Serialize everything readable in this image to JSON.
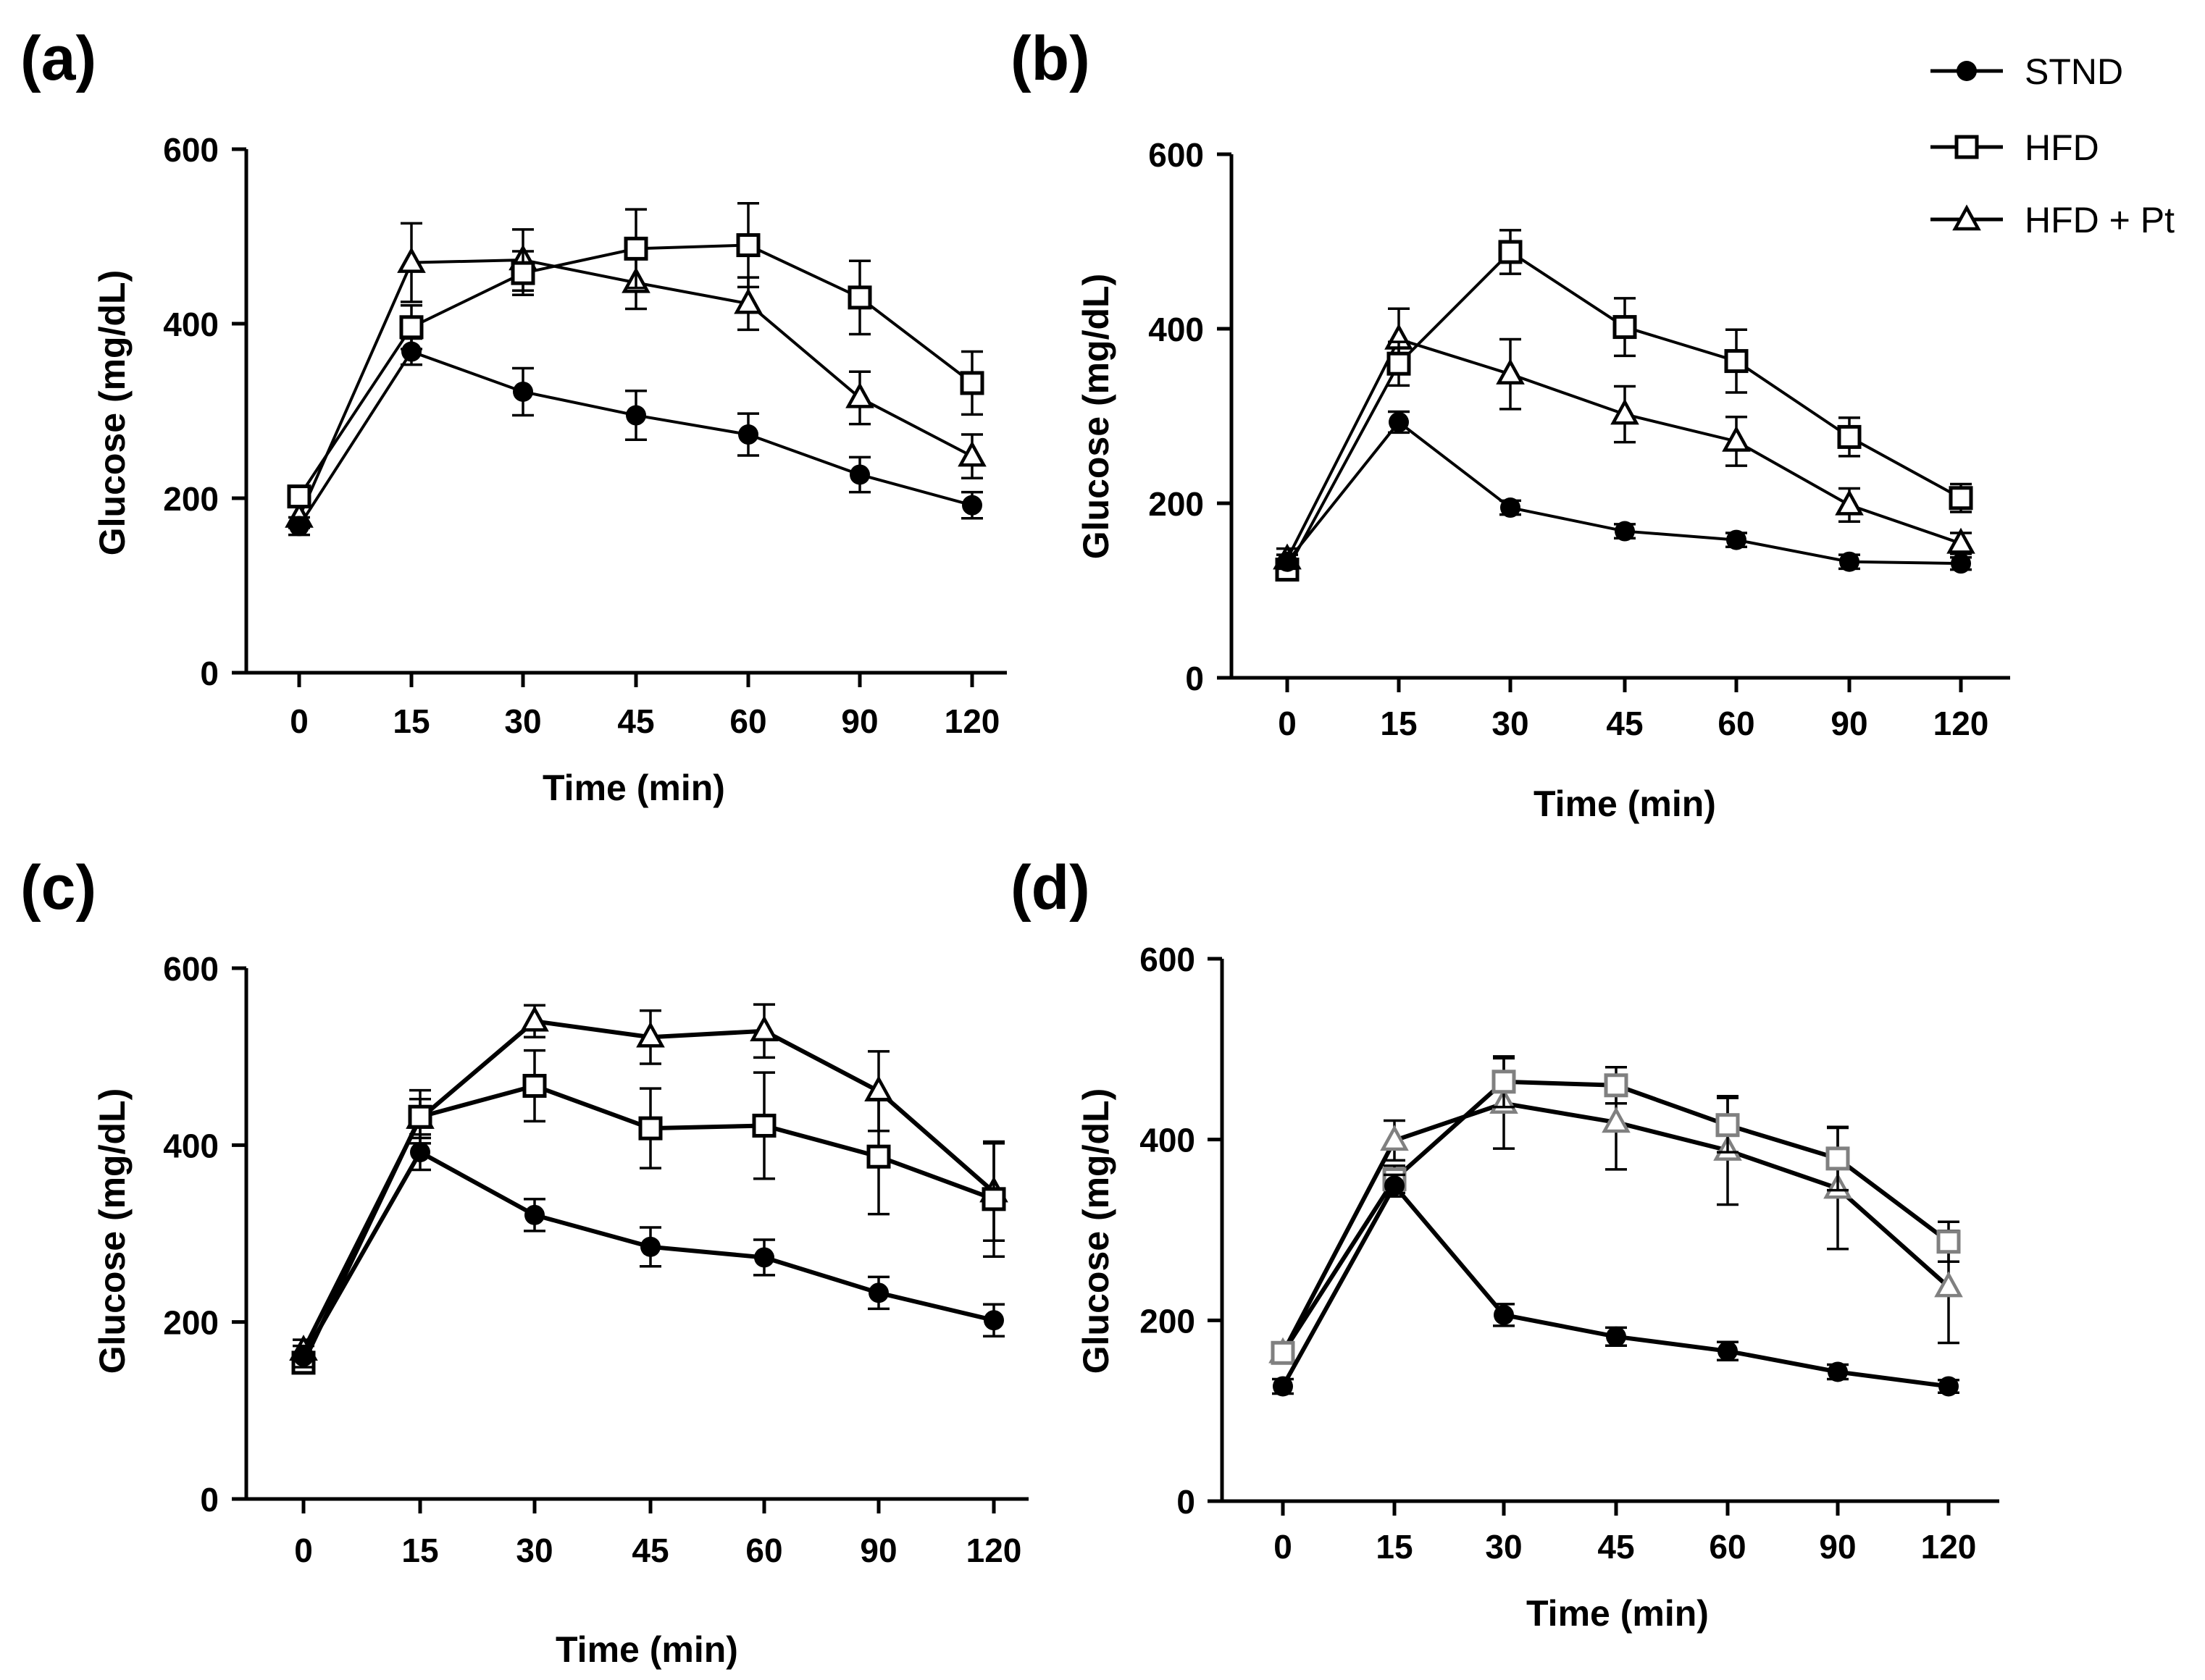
{
  "legend": {
    "placement": "top-right",
    "entries": [
      {
        "label": "STND",
        "marker": "filled-circle"
      },
      {
        "label": "HFD",
        "marker": "open-square"
      },
      {
        "label": "HFD + Pt",
        "marker": "open-triangle"
      }
    ]
  },
  "colors": {
    "axis": "#000000",
    "stnd": "#000000",
    "hfd": "#000000",
    "hfdpt": "#000000",
    "panel_d_hfd": "#808080",
    "panel_d_hfdpt": "#808080",
    "background": "#ffffff"
  },
  "chart_data": [
    {
      "type": "line",
      "panel_label": "(a)",
      "title": "",
      "xlabel": "Time (min)",
      "ylabel": "Glucose (mg/dL)",
      "categories": [
        "0",
        "15",
        "30",
        "45",
        "60",
        "90",
        "120"
      ],
      "ylim": [
        0,
        600
      ],
      "yticks": [
        "0",
        "200",
        "400",
        "600"
      ],
      "grid": false,
      "series": [
        {
          "name": "STND",
          "values": [
            168,
            368,
            322,
            295,
            273,
            227,
            192
          ],
          "errors": [
            10,
            15,
            27,
            28,
            24,
            20,
            15
          ]
        },
        {
          "name": "HFD",
          "values": [
            202,
            396,
            458,
            486,
            490,
            430,
            332
          ],
          "errors": [
            12,
            25,
            25,
            45,
            48,
            42,
            36
          ]
        },
        {
          "name": "HFD + Pt",
          "values": [
            178,
            470,
            473,
            447,
            423,
            315,
            248
          ],
          "errors": [
            12,
            45,
            35,
            30,
            30,
            30,
            25
          ]
        }
      ]
    },
    {
      "type": "line",
      "panel_label": "(b)",
      "title": "",
      "xlabel": "Time (min)",
      "ylabel": "Glucose (mg/dL)",
      "categories": [
        "0",
        "15",
        "30",
        "45",
        "60",
        "90",
        "120"
      ],
      "ylim": [
        0,
        600
      ],
      "yticks": [
        "0",
        "200",
        "400",
        "600"
      ],
      "grid": false,
      "series": [
        {
          "name": "STND",
          "values": [
            133,
            293,
            195,
            168,
            158,
            133,
            131
          ],
          "errors": [
            8,
            12,
            8,
            8,
            8,
            8,
            7
          ]
        },
        {
          "name": "HFD",
          "values": [
            124,
            360,
            488,
            402,
            363,
            276,
            206
          ],
          "errors": [
            10,
            25,
            25,
            33,
            36,
            22,
            16
          ]
        },
        {
          "name": "HFD + Pt",
          "values": [
            136,
            388,
            348,
            302,
            271,
            198,
            154
          ],
          "errors": [
            12,
            35,
            40,
            32,
            28,
            19,
            12
          ]
        }
      ]
    },
    {
      "type": "line",
      "panel_label": "(c)",
      "title": "",
      "xlabel": "Time (min)",
      "ylabel": "Glucose (mg/dL)",
      "categories": [
        "0",
        "15",
        "30",
        "45",
        "60",
        "90",
        "120"
      ],
      "ylim": [
        0,
        600
      ],
      "yticks": [
        "0",
        "200",
        "400",
        "600"
      ],
      "grid": false,
      "series": [
        {
          "name": "STND",
          "values": [
            161,
            392,
            321,
            285,
            273,
            233,
            202
          ],
          "errors": [
            12,
            20,
            18,
            22,
            20,
            18,
            18
          ]
        },
        {
          "name": "HFD",
          "values": [
            154,
            432,
            467,
            419,
            422,
            387,
            339
          ],
          "errors": [
            10,
            30,
            40,
            45,
            60,
            65,
            65
          ]
        },
        {
          "name": "HFD + Pt",
          "values": [
            168,
            430,
            540,
            522,
            529,
            461,
            347
          ],
          "errors": [
            12,
            22,
            18,
            30,
            30,
            45,
            55
          ]
        }
      ]
    },
    {
      "type": "line",
      "panel_label": "(d)",
      "title": "",
      "xlabel": "Time (min)",
      "ylabel": "Glucose (mg/dL)",
      "categories": [
        "0",
        "15",
        "30",
        "45",
        "60",
        "90",
        "120"
      ],
      "ylim": [
        0,
        600
      ],
      "yticks": [
        "0",
        "200",
        "400",
        "600"
      ],
      "grid": false,
      "series": [
        {
          "name": "STND",
          "values": [
            127,
            349,
            206,
            182,
            166,
            143,
            127
          ],
          "errors": [
            8,
            12,
            12,
            10,
            10,
            8,
            7
          ]
        },
        {
          "name": "HFD",
          "values": [
            164,
            356,
            464,
            460,
            416,
            379,
            287
          ],
          "errors": [
            10,
            15,
            28,
            20,
            30,
            35,
            22
          ]
        },
        {
          "name": "HFD + Pt",
          "values": [
            164,
            399,
            440,
            419,
            388,
            346,
            237
          ],
          "errors": [
            10,
            22,
            50,
            52,
            60,
            67,
            62
          ]
        }
      ]
    }
  ]
}
